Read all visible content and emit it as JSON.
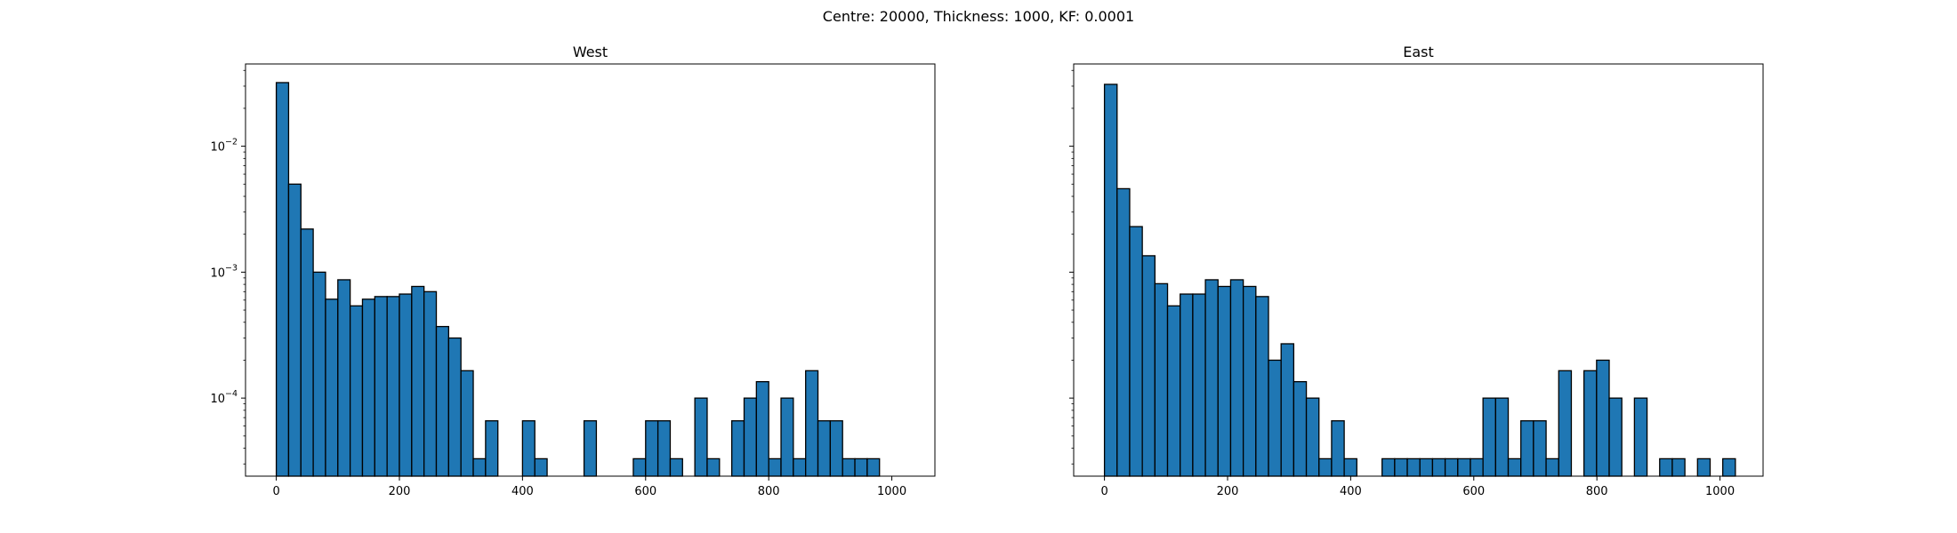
{
  "suptitle": "Centre: 20000, Thickness: 1000, KF: 0.0001",
  "colors": {
    "bar_fill": "#1f77b4",
    "bar_edge": "#000000"
  },
  "chart_data": [
    {
      "type": "bar",
      "title": "West",
      "xlabel": "",
      "ylabel": "",
      "y_scale": "log",
      "xlim": [
        -50,
        1070
      ],
      "ylim": [
        2.4e-05,
        0.045
      ],
      "bin_width": 20,
      "xticks": [
        0,
        200,
        400,
        600,
        800,
        1000
      ],
      "xtick_labels": [
        "0",
        "200",
        "400",
        "600",
        "800",
        "1000"
      ],
      "yticks": [
        0.01,
        0.001,
        0.0001
      ],
      "ytick_labels": [
        {
          "base": "10",
          "exp": "−2"
        },
        {
          "base": "10",
          "exp": "−3"
        },
        {
          "base": "10",
          "exp": "−4"
        }
      ],
      "bins_start": [
        0,
        20,
        40,
        60,
        80,
        100,
        120,
        140,
        160,
        180,
        200,
        220,
        240,
        260,
        280,
        300,
        320,
        340,
        400,
        420,
        500,
        580,
        600,
        620,
        640,
        680,
        700,
        740,
        760,
        780,
        800,
        820,
        840,
        860,
        880,
        900,
        920,
        940,
        960
      ],
      "values": [
        0.032,
        0.005,
        0.0022,
        0.001,
        0.00061,
        0.00087,
        0.00054,
        0.00061,
        0.00064,
        0.00064,
        0.00067,
        0.00077,
        0.0007,
        0.00037,
        0.0003,
        0.000165,
        3.3e-05,
        6.6e-05,
        6.6e-05,
        3.3e-05,
        6.6e-05,
        3.3e-05,
        6.6e-05,
        6.6e-05,
        3.3e-05,
        0.0001,
        3.3e-05,
        6.6e-05,
        0.0001,
        0.000135,
        3.3e-05,
        0.0001,
        3.3e-05,
        0.000165,
        6.6e-05,
        6.6e-05,
        3.3e-05,
        3.3e-05,
        3.3e-05
      ]
    },
    {
      "type": "bar",
      "title": "East",
      "xlabel": "",
      "ylabel": "",
      "y_scale": "log",
      "xlim": [
        -50,
        1070
      ],
      "ylim": [
        2.4e-05,
        0.045
      ],
      "bin_width": 20.5,
      "xticks": [
        0,
        200,
        400,
        600,
        800,
        1000
      ],
      "xtick_labels": [
        "0",
        "200",
        "400",
        "600",
        "800",
        "1000"
      ],
      "yticks": [
        0.01,
        0.001,
        0.0001
      ],
      "ytick_labels": [],
      "bins_start": [
        0,
        20.5,
        41,
        61.5,
        82,
        102.5,
        123,
        143.5,
        164,
        184.5,
        205,
        225.5,
        246,
        266.5,
        287,
        307.5,
        328,
        348.5,
        369,
        389.5,
        451,
        471.5,
        492,
        512.5,
        533,
        553.5,
        574,
        594.5,
        615,
        635.5,
        656,
        676.5,
        697,
        717.5,
        738,
        779,
        799.5,
        820,
        861,
        902,
        922.5,
        963.5,
        1004.5
      ],
      "values": [
        0.031,
        0.0046,
        0.0023,
        0.00135,
        0.00081,
        0.00054,
        0.00067,
        0.00067,
        0.00087,
        0.00077,
        0.00087,
        0.00077,
        0.00064,
        0.0002,
        0.00027,
        0.000135,
        0.0001,
        3.3e-05,
        6.6e-05,
        3.3e-05,
        3.3e-05,
        3.3e-05,
        3.3e-05,
        3.3e-05,
        3.3e-05,
        3.3e-05,
        3.3e-05,
        3.3e-05,
        0.0001,
        0.0001,
        3.3e-05,
        6.6e-05,
        6.6e-05,
        3.3e-05,
        0.000165,
        0.000165,
        0.0002,
        0.0001,
        0.0001,
        3.3e-05,
        3.3e-05,
        3.3e-05,
        3.3e-05
      ]
    }
  ]
}
